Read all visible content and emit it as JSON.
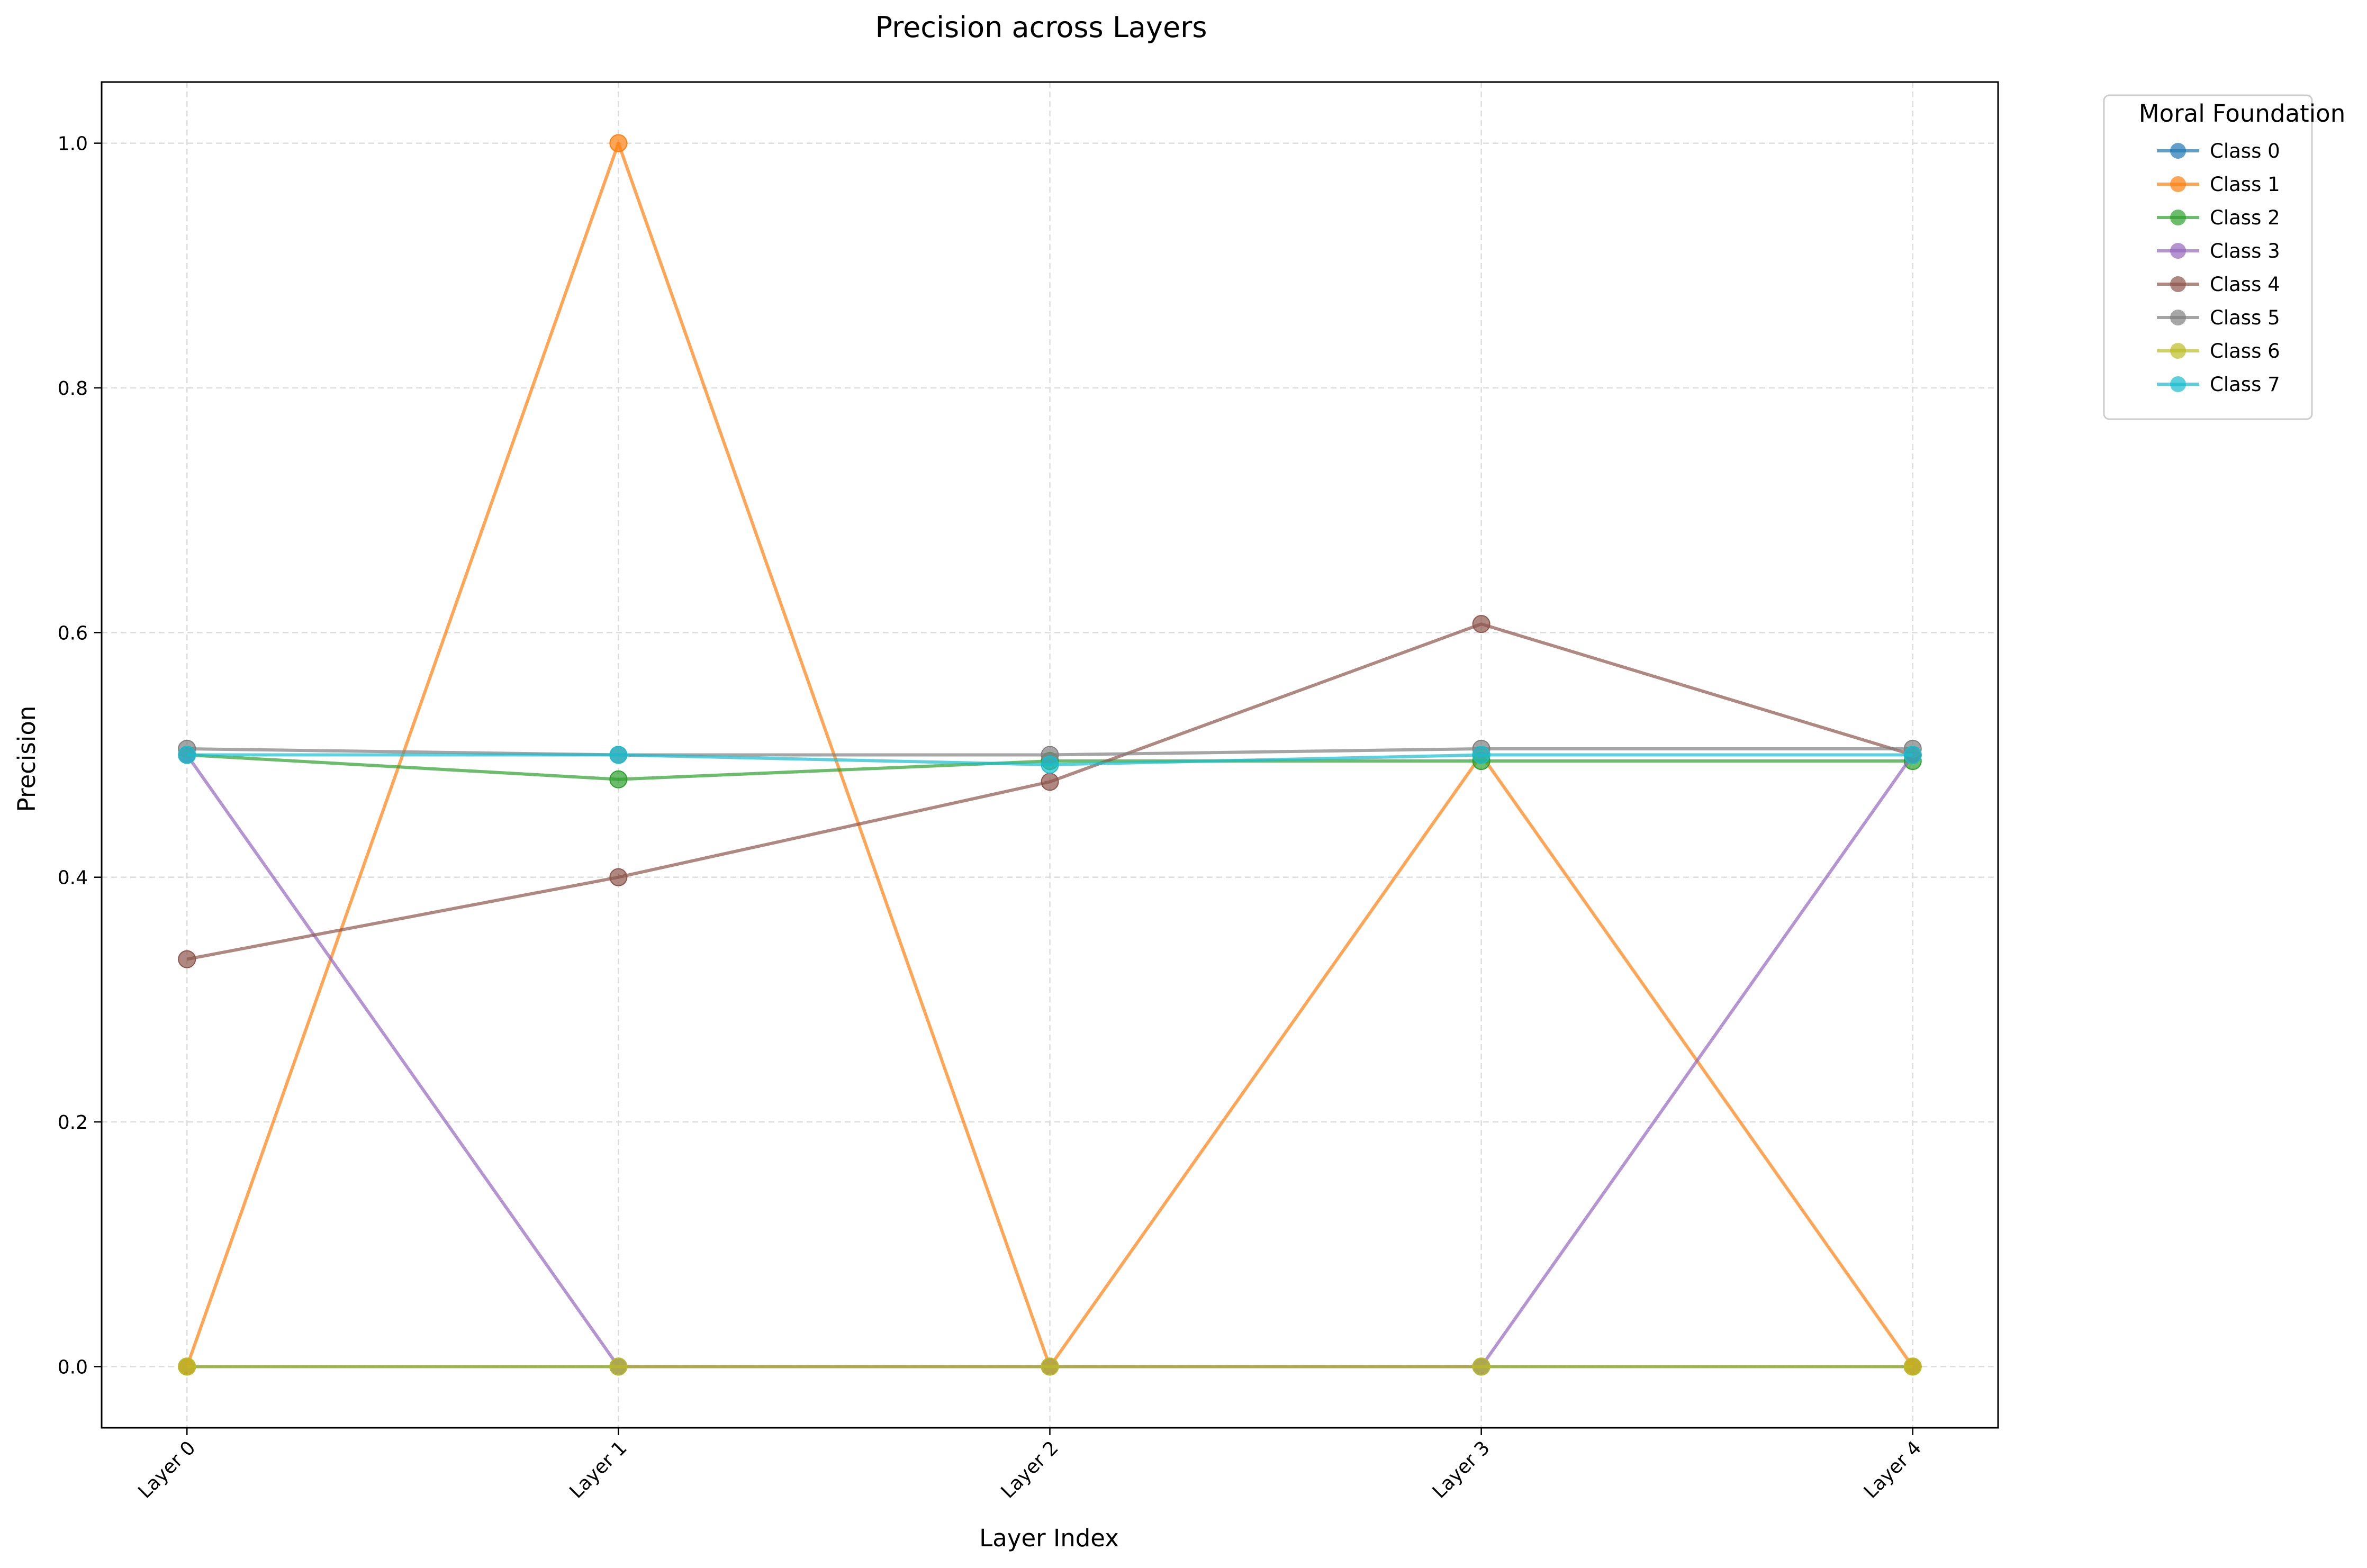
{
  "chart_data": {
    "type": "line",
    "title": "Precision across Layers",
    "xlabel": "Layer Index",
    "ylabel": "Precision",
    "categories": [
      "Layer 0",
      "Layer 1",
      "Layer 2",
      "Layer 3",
      "Layer 4"
    ],
    "ylim": [
      -0.05,
      1.05
    ],
    "yticks": [
      0.0,
      0.2,
      0.4,
      0.6,
      0.8,
      1.0
    ],
    "ytick_labels": [
      "0.0",
      "0.2",
      "0.4",
      "0.6",
      "0.8",
      "1.0"
    ],
    "grid": true,
    "legend": {
      "title": "Moral Foundation",
      "placement": "outside-top-right"
    },
    "series": [
      {
        "name": "Class 0",
        "color": "#1f77b4",
        "values": [
          0.0,
          0.0,
          0.0,
          0.0,
          0.0
        ]
      },
      {
        "name": "Class 1",
        "color": "#ff7f0e",
        "values": [
          0.0,
          1.0,
          0.0,
          0.5,
          0.0
        ]
      },
      {
        "name": "Class 2",
        "color": "#2ca02c",
        "values": [
          0.5,
          0.48,
          0.495,
          0.495,
          0.495
        ]
      },
      {
        "name": "Class 3",
        "color": "#9467bd",
        "values": [
          0.5,
          0.0,
          0.0,
          0.0,
          0.5
        ]
      },
      {
        "name": "Class 4",
        "color": "#8c564b",
        "values": [
          0.333,
          0.4,
          0.478,
          0.607,
          0.5
        ]
      },
      {
        "name": "Class 5",
        "color": "#7f7f7f",
        "values": [
          0.505,
          0.5,
          0.5,
          0.505,
          0.505
        ]
      },
      {
        "name": "Class 6",
        "color": "#bcbd22",
        "values": [
          0.0,
          0.0,
          0.0,
          0.0,
          0.0
        ]
      },
      {
        "name": "Class 7",
        "color": "#17becf",
        "values": [
          0.5,
          0.5,
          0.492,
          0.5,
          0.5
        ]
      }
    ]
  }
}
